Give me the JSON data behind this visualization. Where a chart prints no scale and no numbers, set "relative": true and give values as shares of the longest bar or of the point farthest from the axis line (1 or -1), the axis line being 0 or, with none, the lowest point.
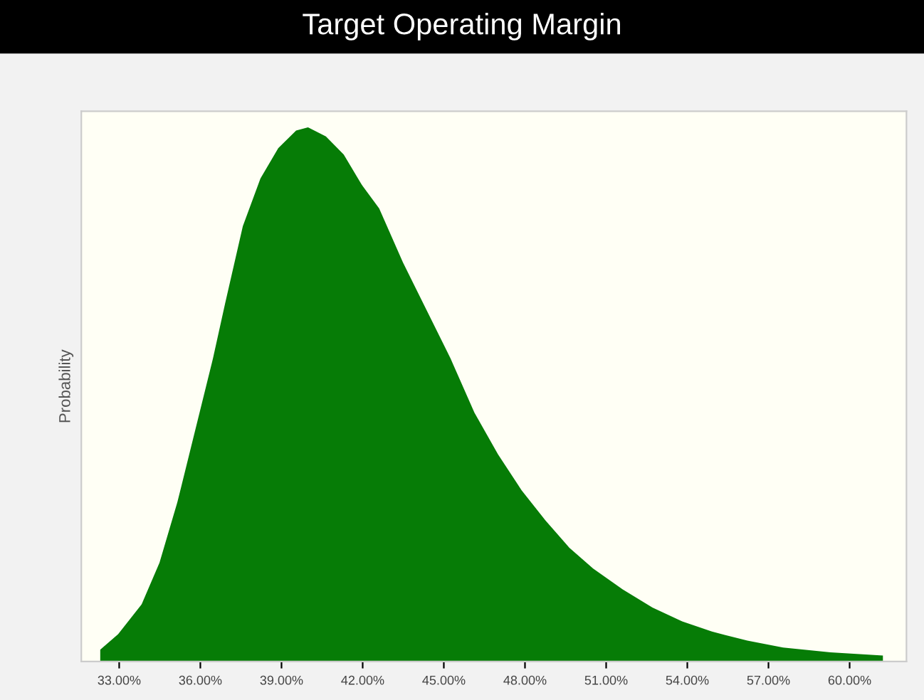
{
  "chart_data": {
    "type": "area",
    "title": "Target Operating Margin",
    "ylabel": "Probability",
    "relative": true,
    "series": [
      {
        "color": "#067c06",
        "x": [
          32.3,
          32.96,
          33.83,
          34.49,
          35.15,
          35.81,
          36.47,
          36.91,
          37.57,
          38.22,
          38.88,
          39.54,
          39.98,
          40.64,
          41.3,
          41.96,
          42.61,
          43.49,
          44.37,
          45.25,
          46.13,
          47.0,
          47.88,
          48.76,
          49.64,
          50.52,
          51.61,
          52.71,
          53.81,
          54.91,
          56.22,
          57.54,
          59.29,
          61.23
        ],
        "values": [
          0.022,
          0.051,
          0.107,
          0.185,
          0.298,
          0.433,
          0.568,
          0.669,
          0.815,
          0.904,
          0.961,
          0.994,
          1.0,
          0.983,
          0.949,
          0.893,
          0.848,
          0.747,
          0.657,
          0.567,
          0.466,
          0.388,
          0.32,
          0.264,
          0.213,
          0.174,
          0.135,
          0.101,
          0.075,
          0.056,
          0.039,
          0.026,
          0.017,
          0.011
        ]
      }
    ],
    "xlim": [
      31.6,
      62.1
    ],
    "xticks": [
      {
        "value": 33,
        "label": "33.00%"
      },
      {
        "value": 36,
        "label": "36.00%"
      },
      {
        "value": 39,
        "label": "39.00%"
      },
      {
        "value": 42,
        "label": "42.00%"
      },
      {
        "value": 45,
        "label": "45.00%"
      },
      {
        "value": 48,
        "label": "48.00%"
      },
      {
        "value": 51,
        "label": "51.00%"
      },
      {
        "value": 54,
        "label": "54.00%"
      },
      {
        "value": 57,
        "label": "57.00%"
      },
      {
        "value": 60,
        "label": "60.00%"
      }
    ],
    "tick_labels": "x",
    "grid": false,
    "legend": false
  }
}
